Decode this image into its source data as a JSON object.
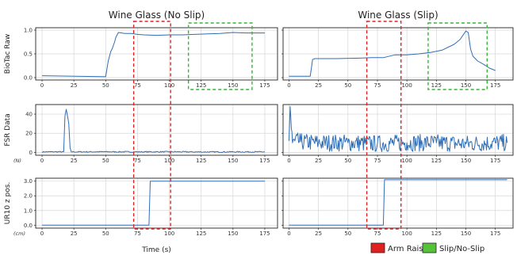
{
  "chart_data": {
    "type": "line",
    "columns": [
      {
        "title": "Wine Glass (No Slip)",
        "xlim": [
          -5,
          185
        ],
        "xticks": [
          0,
          25,
          50,
          75,
          100,
          125,
          150,
          175
        ]
      },
      {
        "title": "Wine Glass (Slip)",
        "xlim": [
          -5,
          190
        ],
        "xticks": [
          0,
          25,
          50,
          75,
          100,
          125,
          150,
          175
        ]
      }
    ],
    "rows": [
      {
        "ylabel": "BioTac Raw",
        "unit": "",
        "ylim": [
          -0.05,
          1.05
        ],
        "yticks": [
          "0.0",
          "0.5",
          "1.0"
        ],
        "ytick_values": [
          0,
          0.5,
          1.0
        ]
      },
      {
        "ylabel": "FSR Data",
        "unit": "(N)",
        "ylim": [
          -3,
          50
        ],
        "yticks": [
          "0",
          "20",
          "40"
        ],
        "ytick_values": [
          0,
          20,
          40
        ]
      },
      {
        "ylabel": "UR10 z pos.",
        "unit": "(cm)",
        "ylim": [
          -0.2,
          3.2
        ],
        "yticks": [
          "0.0",
          "1.0",
          "2.0",
          "3.0"
        ],
        "ytick_values": [
          0,
          1,
          2,
          3
        ]
      }
    ],
    "xlabel": "Time (s)",
    "panels": [
      {
        "row": 0,
        "col": 0,
        "x": [
          0,
          50,
          52,
          54,
          55,
          57,
          58,
          60,
          65,
          70,
          75,
          80,
          90,
          100,
          110,
          120,
          130,
          140,
          150,
          160,
          170,
          175
        ],
        "y": [
          0.04,
          0.02,
          0.35,
          0.55,
          0.6,
          0.75,
          0.85,
          0.95,
          0.93,
          0.93,
          0.91,
          0.9,
          0.89,
          0.9,
          0.9,
          0.91,
          0.92,
          0.93,
          0.95,
          0.94,
          0.94,
          0.94
        ]
      },
      {
        "row": 0,
        "col": 1,
        "x": [
          0,
          18,
          19,
          20,
          22,
          40,
          60,
          70,
          80,
          90,
          100,
          110,
          120,
          130,
          140,
          145,
          150,
          152,
          154,
          156,
          160,
          165,
          170,
          175
        ],
        "y": [
          0.03,
          0.03,
          0.2,
          0.38,
          0.4,
          0.4,
          0.41,
          0.42,
          0.42,
          0.48,
          0.48,
          0.5,
          0.53,
          0.58,
          0.7,
          0.8,
          0.98,
          0.95,
          0.6,
          0.45,
          0.35,
          0.28,
          0.2,
          0.15
        ]
      },
      {
        "row": 1,
        "col": 0,
        "x": [
          0,
          10,
          17,
          18,
          19,
          20,
          21,
          22,
          23,
          25,
          50,
          75,
          100,
          125,
          150,
          175
        ],
        "y": [
          0.5,
          0.6,
          0.5,
          38,
          45,
          38,
          30,
          5,
          0.5,
          0.5,
          0.6,
          0.5,
          0.6,
          0.4,
          0.5,
          0.5
        ],
        "noise": 0.6
      },
      {
        "row": 1,
        "col": 1,
        "x": [
          0,
          1,
          2,
          3,
          5,
          10,
          25,
          50,
          75,
          100,
          125,
          150,
          175,
          185
        ],
        "y": [
          12,
          48,
          25,
          10,
          12,
          11,
          10,
          10,
          9,
          10,
          10,
          9,
          10,
          10
        ],
        "noise": 9
      },
      {
        "row": 2,
        "col": 0,
        "x": [
          0,
          84,
          85,
          90,
          100,
          125,
          150,
          175
        ],
        "y": [
          0,
          0,
          3.0,
          3.0,
          3.0,
          3.0,
          3.0,
          3.0
        ]
      },
      {
        "row": 2,
        "col": 1,
        "x": [
          0,
          80,
          81,
          85,
          100,
          125,
          150,
          185
        ],
        "y": [
          0,
          0,
          3.1,
          3.1,
          3.1,
          3.1,
          3.1,
          3.1
        ]
      }
    ],
    "regions": [
      {
        "label": "Arm Raise",
        "color": "#e02020",
        "x_col0": [
          72,
          101
        ],
        "x_col1": [
          66,
          95
        ]
      },
      {
        "label": "Slip/No-Slip",
        "color": "#33b533",
        "x_col0": [
          115,
          165
        ],
        "x_col1": [
          118,
          168
        ]
      }
    ],
    "line_color": "#2f6db5"
  },
  "legend": [
    {
      "label": "Arm Raise",
      "color": "#e02020",
      "edge": "#222222"
    },
    {
      "label": "Slip/No-Slip",
      "color": "#55c23a",
      "edge": "#222222"
    }
  ]
}
